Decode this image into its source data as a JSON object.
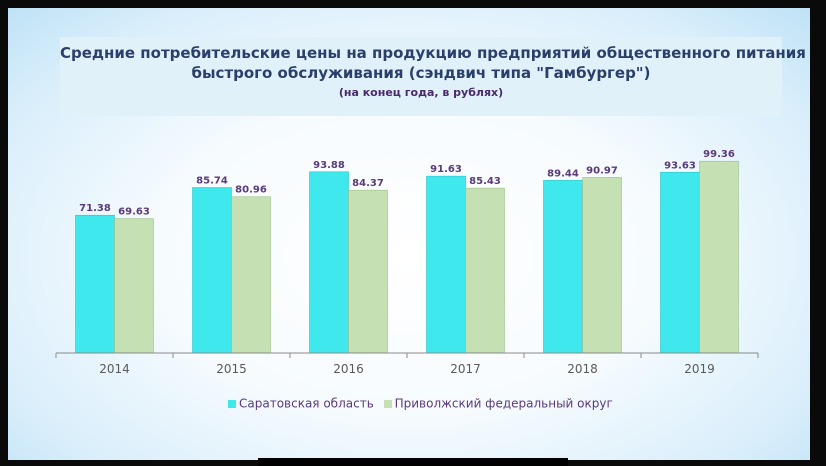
{
  "title": {
    "line1": "Средние потребительские цены на продукцию предприятий общественного питания",
    "line2": "быстрого обслуживания (сэндвич типа \"Гамбургер\")",
    "subtitle": "(на конец года, в рублях)"
  },
  "colors": {
    "saratov": "#3fe8ec",
    "privolzhsky": "#c5e0b3",
    "value_label": "#5a3a7a",
    "axis": "#8a8a8a"
  },
  "chart_data": {
    "type": "bar",
    "title": "Средние потребительские цены на продукцию предприятий общественного питания быстрого обслуживания (сэндвич типа \"Гамбургер\")",
    "subtitle": "(на конец года, в рублях)",
    "categories": [
      "2014",
      "2015",
      "2016",
      "2017",
      "2018",
      "2019"
    ],
    "series": [
      {
        "name": "Саратовская область",
        "values": [
          71.38,
          85.74,
          93.88,
          91.63,
          89.44,
          93.63
        ]
      },
      {
        "name": "Приволжский федеральный округ",
        "values": [
          69.63,
          80.96,
          84.37,
          85.43,
          90.97,
          99.36
        ]
      }
    ],
    "ylim": [
      0,
      100
    ],
    "grid": false,
    "legend": "bottom"
  }
}
